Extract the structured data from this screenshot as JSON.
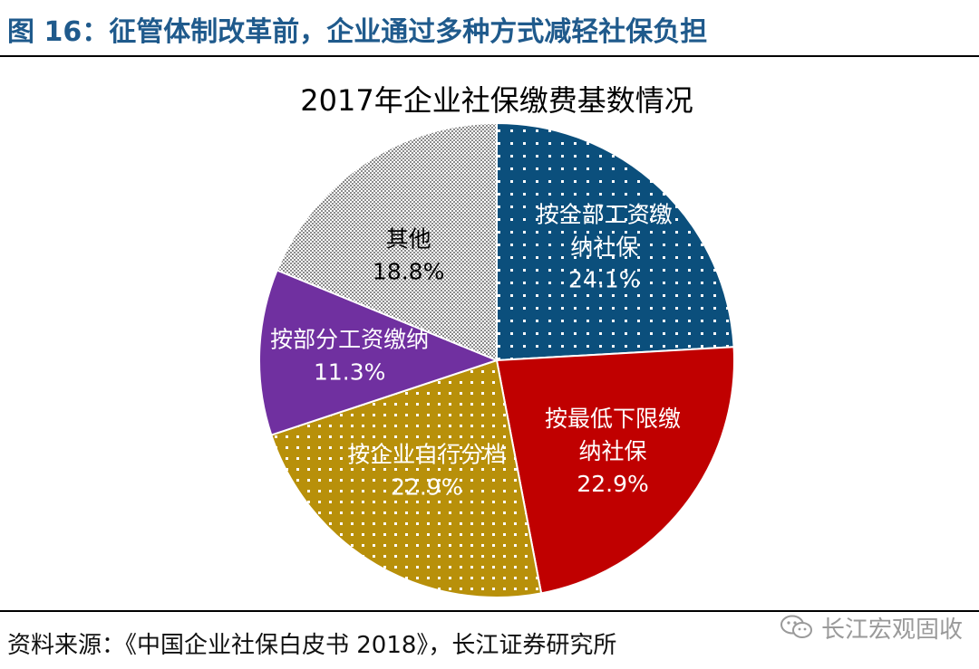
{
  "figure_title": "图 16：征管体制改革前，企业通过多种方式减轻社保负担",
  "source_note": "资料来源：《中国企业社保白皮书 2018》，长江证券研究所",
  "watermark": {
    "icon": "wechat-icon",
    "text": "长江宏观固收"
  },
  "colors": {
    "title": "#1f5a8c",
    "blue": "#0b4f7c",
    "red": "#c00000",
    "gold": "#b8900a",
    "purple": "#7030a0",
    "gray": "#8c8c8c"
  },
  "chart_data": {
    "type": "pie",
    "title": "2017年企业社保缴费基数情况",
    "start_angle_deg": 0,
    "direction": "clockwise",
    "slices": [
      {
        "lines": [
          "按全部工资缴",
          "纳社保"
        ],
        "value": 24.1,
        "pct": "24.1%",
        "color": "#0b4f7c",
        "pattern": "dots"
      },
      {
        "lines": [
          "按最低下限缴",
          "纳社保"
        ],
        "value": 22.9,
        "pct": "22.9%",
        "color": "#c00000",
        "pattern": "solid"
      },
      {
        "lines": [
          "按企业自行分档"
        ],
        "value": 22.9,
        "pct": "22.9%",
        "color": "#b8900a",
        "pattern": "dots"
      },
      {
        "lines": [
          "按部分工资缴纳"
        ],
        "value": 11.3,
        "pct": "11.3%",
        "color": "#7030a0",
        "pattern": "solid"
      },
      {
        "lines": [
          "其他"
        ],
        "value": 18.8,
        "pct": "18.8%",
        "color": "#8c8c8c",
        "pattern": "checker"
      }
    ]
  }
}
